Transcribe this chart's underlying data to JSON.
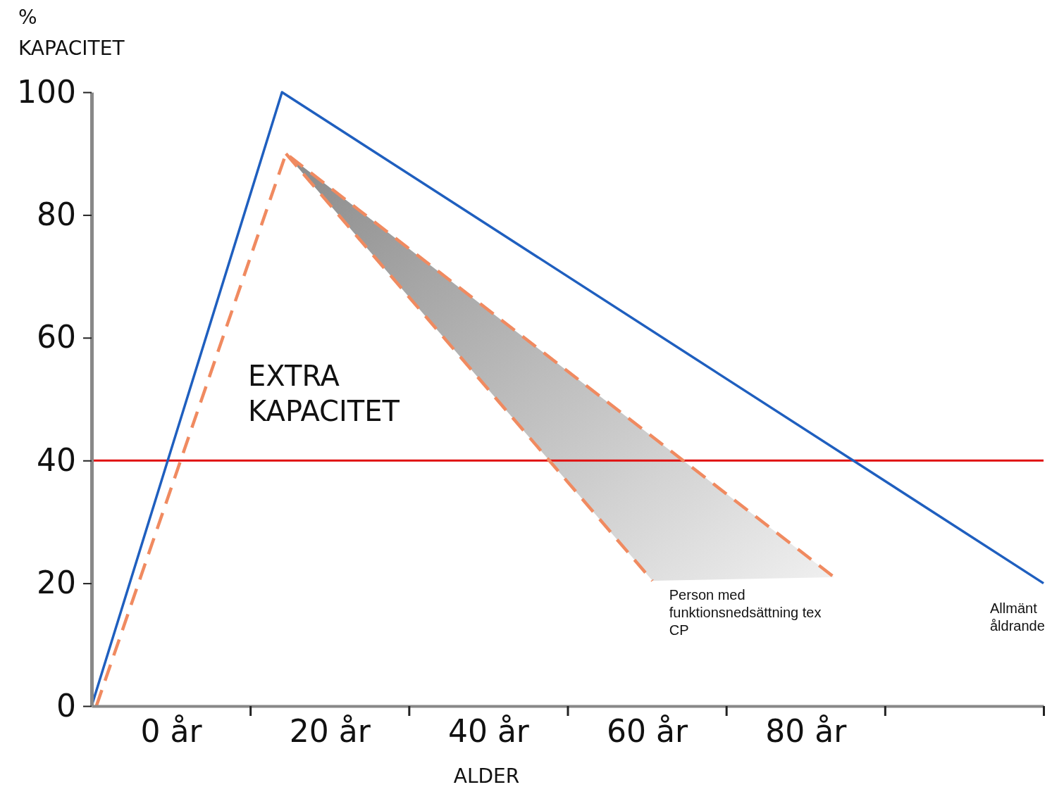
{
  "chart_data": {
    "type": "line",
    "ylabel": "% KAPACITET",
    "xlabel": "ALDER",
    "xlim": [
      -10,
      110
    ],
    "ylim": [
      0,
      100
    ],
    "xticks": [
      {
        "value": 0,
        "label": "0 år"
      },
      {
        "value": 20,
        "label": "20 år"
      },
      {
        "value": 40,
        "label": "40 år"
      },
      {
        "value": 60,
        "label": "60 år"
      },
      {
        "value": 80,
        "label": "80 år"
      },
      {
        "value": 10,
        "label": null
      },
      {
        "value": 30,
        "label": null
      },
      {
        "value": 50,
        "label": null
      },
      {
        "value": 70,
        "label": null
      },
      {
        "value": 90,
        "label": null
      },
      {
        "value": 110,
        "label": null
      }
    ],
    "yticks": [
      0,
      20,
      40,
      60,
      80,
      100
    ],
    "series": [
      {
        "name": "Allmänt åldrande",
        "color": "#1f5fbf",
        "x": [
          -10,
          14,
          110
        ],
        "values": [
          0,
          100,
          20
        ],
        "line_style": "solid"
      },
      {
        "name": "Person med funktionsnedsättning tex CP",
        "color": "#f08a60",
        "x": [
          -9.4,
          14.5,
          83.6
        ],
        "values": [
          0,
          90,
          21
        ],
        "line_style": "dashed"
      },
      {
        "color": "#f08a60",
        "x": [
          14.5,
          60.7
        ],
        "values": [
          90,
          20.4
        ],
        "line_style": "dashed"
      }
    ],
    "ref_lines": [
      {
        "axis": "y",
        "value": 40,
        "color": "#e01010"
      }
    ],
    "annotations": [
      "EXTRA KAPACITET"
    ],
    "grid": false,
    "marker": "none"
  }
}
